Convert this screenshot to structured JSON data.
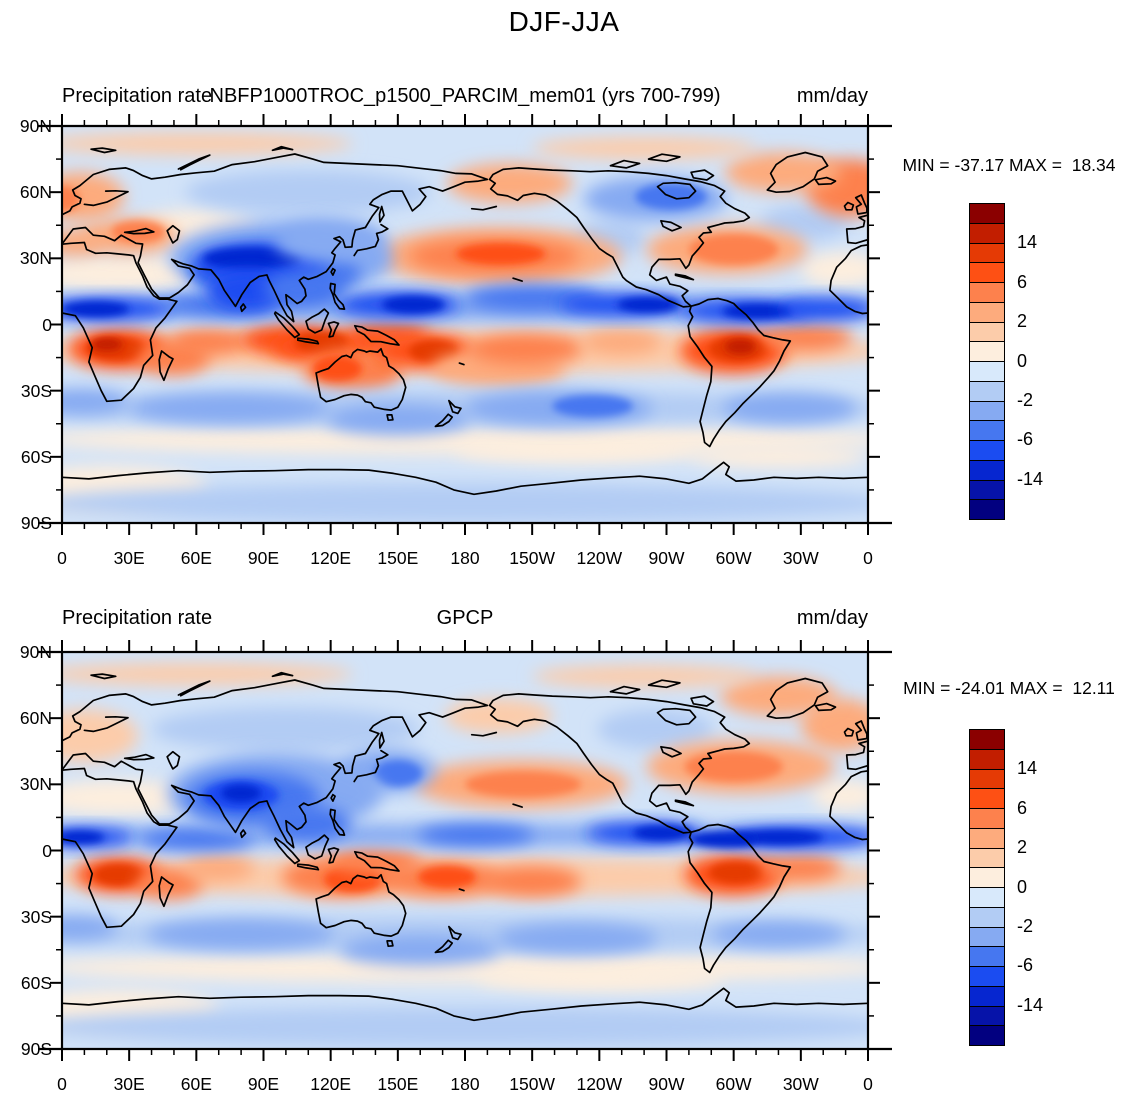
{
  "main_title": "DJF-JJA",
  "colors": {
    "figure_background": "#ffffff",
    "coastline": "#000000",
    "map_background_weak_negative": "#d2e3f8",
    "text": "#000000"
  },
  "axes": {
    "x_tick_labels": [
      "0",
      "30E",
      "60E",
      "90E",
      "120E",
      "150E",
      "180",
      "150W",
      "120W",
      "90W",
      "60W",
      "30W",
      "0"
    ],
    "x_tick_lons": [
      0,
      30,
      60,
      90,
      120,
      150,
      180,
      210,
      240,
      270,
      300,
      330,
      360
    ],
    "y_tick_labels": [
      "90N",
      "60N",
      "30N",
      "0",
      "30S",
      "60S",
      "90S"
    ],
    "y_tick_lats": [
      90,
      60,
      30,
      0,
      -30,
      -60,
      -90
    ]
  },
  "colorbar": {
    "n_boxes": 16,
    "colors_top_to_bottom": [
      "#8b0000",
      "#c21e00",
      "#e53a05",
      "#fe5014",
      "#fd814d",
      "#fdab7d",
      "#fcccaa",
      "#fdeede",
      "#d8e9fb",
      "#b2ccf4",
      "#86aaf2",
      "#4677f0",
      "#1b4cf1",
      "#0626d0",
      "#0613a9",
      "#020080"
    ],
    "labels": [
      "14",
      "6",
      "2",
      "0",
      "-2",
      "-6",
      "-14"
    ],
    "label_boundaries": [
      2,
      4,
      6,
      8,
      10,
      12,
      14
    ]
  },
  "panels": [
    {
      "id": "model",
      "title_left": "Precipitation rate",
      "title_center": "NBFP1000TROC_p1500_PARCIM_mem01 (yrs 700-799)",
      "title_right": "mm/day",
      "stats_text": "MIN = -37.17 MAX =  18.34",
      "min": -37.17,
      "max": 18.34
    },
    {
      "id": "gpcp",
      "title_left": "Precipitation rate",
      "title_center": "GPCP",
      "title_right": "mm/day",
      "stats_text": "MIN = -24.01 MAX =  12.11",
      "min": -24.01,
      "max": 12.11
    }
  ],
  "chart_data": [
    {
      "type": "heatmap",
      "variant": "filled-contour global map, equirectangular; longitude runs 0E eastward through 180 back to 0 (Greenwich at both edges); latitude 90N at top, 90S at bottom",
      "panel": "top",
      "figure_title": "DJF-JJA",
      "title_left": "Precipitation rate",
      "title_center": "NBFP1000TROC_p1500_PARCIM_mem01 (yrs 700-799)",
      "units": "mm/day",
      "min": -37.17,
      "max": 18.34,
      "x_tick_labels": [
        "0",
        "30E",
        "60E",
        "90E",
        "120E",
        "150E",
        "180",
        "150W",
        "120W",
        "90W",
        "60W",
        "30W",
        "0"
      ],
      "y_tick_labels": [
        "90N",
        "60N",
        "30N",
        "0",
        "30S",
        "60S",
        "90S"
      ],
      "colorbar_visible_labels": [
        14,
        6,
        2,
        0,
        -2,
        -6,
        -14
      ],
      "n_color_boxes": 16,
      "palette_top_to_bottom": [
        "#8b0000",
        "#c21e00",
        "#e53a05",
        "#fe5014",
        "#fd814d",
        "#fdab7d",
        "#fcccaa",
        "#fdeede",
        "#d8e9fb",
        "#b2ccf4",
        "#86aaf2",
        "#4677f0",
        "#1b4cf1",
        "#0626d0",
        "#0613a9",
        "#020080"
      ],
      "pattern_highlights": [
        "dark-blue (strong negative) band near 5-10N across equatorial Africa, the west and east Pacific and the tropical Atlantic",
        "large dark-blue region over India / Himalaya / Southeast Asia",
        "orange-red band just south of the equator over southern Africa, the Indonesia-Australia sector, the SPCZ and tropical South America",
        "orange maximum over the mid-latitude North Pacific near 30N and over eastern North America / west Atlantic",
        "light-blue band near 30-45S and a pale cream band near 50-60S"
      ]
    },
    {
      "type": "heatmap",
      "variant": "filled-contour global map, equirectangular; longitude runs 0E eastward through 180 back to 0 (Greenwich at both edges); latitude 90N at top, 90S at bottom",
      "panel": "bottom",
      "figure_title": "DJF-JJA",
      "title_left": "Precipitation rate",
      "title_center": "GPCP",
      "units": "mm/day",
      "min": -24.01,
      "max": 12.11,
      "x_tick_labels": [
        "0",
        "30E",
        "60E",
        "90E",
        "120E",
        "150E",
        "180",
        "150W",
        "120W",
        "90W",
        "60W",
        "30W",
        "0"
      ],
      "y_tick_labels": [
        "90N",
        "60N",
        "30N",
        "0",
        "30S",
        "60S",
        "90S"
      ],
      "colorbar_visible_labels": [
        14,
        6,
        2,
        0,
        -2,
        -6,
        -14
      ],
      "n_color_boxes": 16,
      "palette_top_to_bottom": [
        "#8b0000",
        "#c21e00",
        "#e53a05",
        "#fe5014",
        "#fd814d",
        "#fdab7d",
        "#fcccaa",
        "#fdeede",
        "#d8e9fb",
        "#b2ccf4",
        "#86aaf2",
        "#4677f0",
        "#1b4cf1",
        "#0626d0",
        "#0613a9",
        "#020080"
      ],
      "pattern_highlights": [
        "same spatial structure as the model panel but smoother and weaker",
        "dark-blue ITCZ band near 5-10N strongest over the Atlantic, east Pacific and west equatorial Africa",
        "dark-blue monsoon region over India / Southeast Asia",
        "orange-red band south of the equator over southern Africa, Indonesia/Australia, the SPCZ and South America",
        "salmon maxima over the North Pacific and North America / North Atlantic mid-latitudes"
      ]
    }
  ]
}
